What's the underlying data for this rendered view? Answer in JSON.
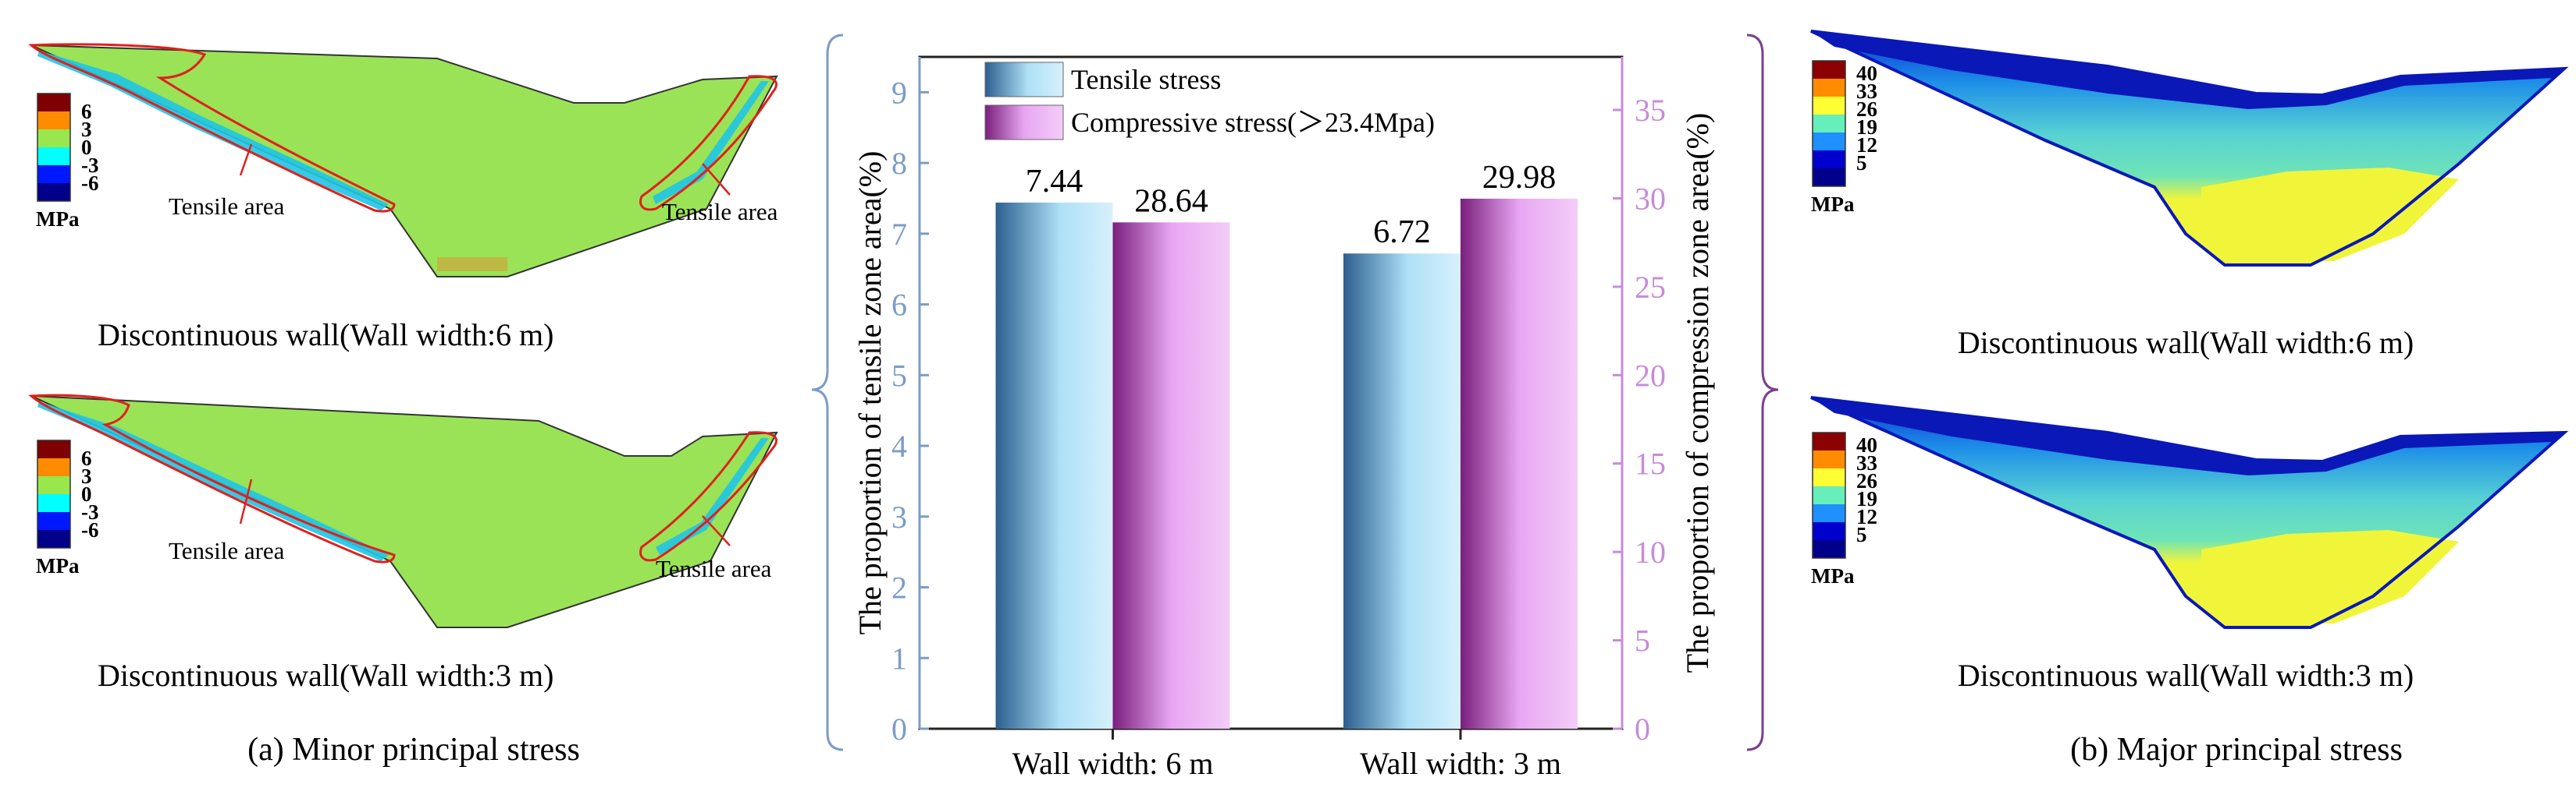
{
  "figure": {
    "left_panel": {
      "caption": "(a) Minor principal stress",
      "unit": "MPa",
      "legend_ticks": [
        "6",
        "3",
        "0",
        "-3",
        "-6"
      ],
      "legend_colors": [
        "#7f0000",
        "#ff8c00",
        "#99e64d",
        "#00ffff",
        "#0018ff",
        "#00008b"
      ],
      "plots": [
        {
          "title": "Discontinuous wall(Wall width:6 m)",
          "label_left": "Tensile area",
          "label_right": "Tensile area"
        },
        {
          "title": "Discontinuous wall(Wall width:3 m)",
          "label_left": "Tensile area",
          "label_right": "Tensile area"
        }
      ]
    },
    "right_panel": {
      "caption": "(b) Major principal stress",
      "unit": "MPa",
      "legend_ticks": [
        "40",
        "33",
        "26",
        "19",
        "12",
        "5"
      ],
      "legend_colors": [
        "#8b0000",
        "#ff8c00",
        "#ffff33",
        "#66eebb",
        "#1e90ff",
        "#0000cd",
        "#00008b"
      ],
      "plots": [
        {
          "title": "Discontinuous wall(Wall width:6 m)"
        },
        {
          "title": "Discontinuous wall(Wall width:3 m)"
        }
      ]
    }
  },
  "chart_data": {
    "type": "bar",
    "categories": [
      "Wall width: 6 m",
      "Wall width: 3 m"
    ],
    "series": [
      {
        "name": "Tensile stress",
        "axis": "left",
        "values": [
          7.44,
          6.72
        ],
        "labels": [
          "7.44",
          "6.72"
        ],
        "color": "#9fd4ee"
      },
      {
        "name": "Compressive stress(＞23.4Mpa)",
        "axis": "right",
        "values": [
          28.64,
          29.98
        ],
        "labels": [
          "28.64",
          "29.98"
        ],
        "color": "#e8a6f2"
      }
    ],
    "y_left": {
      "label": "The proportion of tensile zone area(%)",
      "range": [
        0,
        9.5
      ],
      "ticks": [
        "0",
        "1",
        "2",
        "3",
        "4",
        "5",
        "6",
        "7",
        "8",
        "9"
      ],
      "color": "#7b9cc6"
    },
    "y_right": {
      "label": "The proportion of compression zone area(%)",
      "range": [
        0,
        38
      ],
      "ticks": [
        "0",
        "5",
        "10",
        "15",
        "20",
        "25",
        "30",
        "35"
      ],
      "color": "#c78bd9"
    },
    "legend_position": "top-left"
  }
}
